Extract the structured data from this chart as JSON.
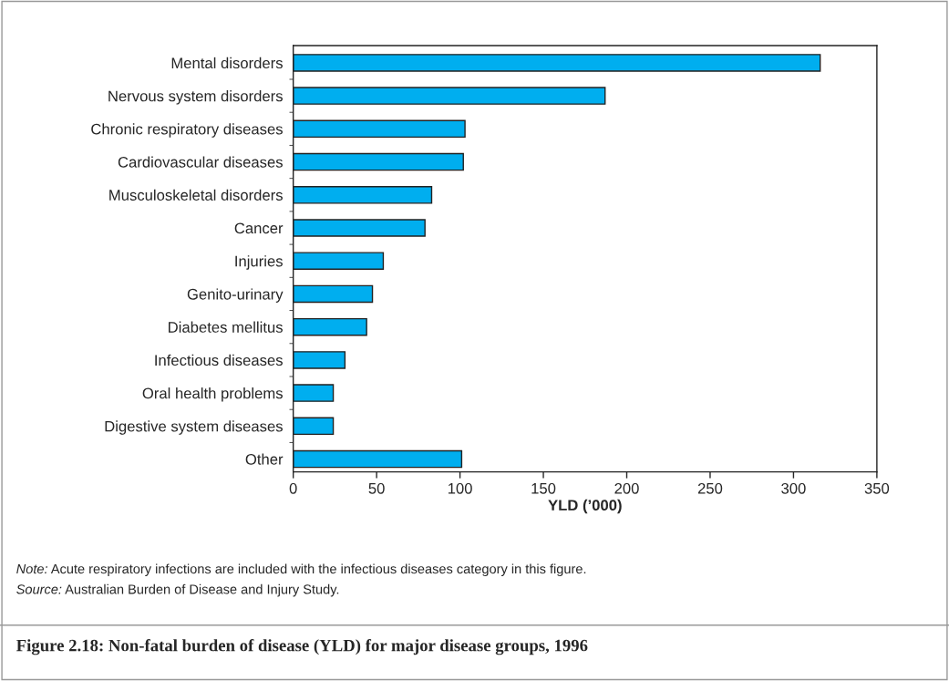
{
  "chart_data": {
    "type": "bar",
    "orientation": "horizontal",
    "title": "Figure 2.18: Non-fatal burden of disease (YLD) for major disease groups, 1996",
    "xlabel": "YLD (’000)",
    "categories": [
      "Mental disorders",
      "Nervous system disorders",
      "Chronic respiratory diseases",
      "Cardiovascular diseases",
      "Musculoskeletal disorders",
      "Cancer",
      "Injuries",
      "Genito-urinary",
      "Diabetes mellitus",
      "Infectious diseases",
      "Oral health problems",
      "Digestive system diseases",
      "Other"
    ],
    "values": [
      316,
      187,
      103,
      102,
      83,
      79,
      54,
      47.5,
      44,
      31,
      24,
      24,
      101
    ],
    "color": "#00aeef",
    "xlim": [
      0,
      350
    ],
    "xticks": [
      0,
      50,
      100,
      150,
      200,
      250,
      300,
      350
    ],
    "grid": false,
    "legend": false,
    "annotations": [
      "Note: Acute respiratory infections are included with the infectious diseases category in this figure.",
      "Source: Australian Burden of Disease and Injury Study."
    ]
  }
}
